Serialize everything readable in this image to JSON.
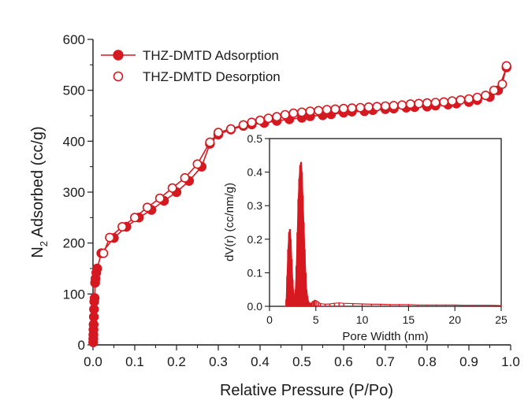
{
  "colors": {
    "series": "#d61920",
    "axis": "#1a1a1a",
    "background": "#ffffff"
  },
  "chart_data": [
    {
      "type": "line",
      "title": "",
      "xlabel": "Relative Pressure (P/Po)",
      "ylabel_main": "N",
      "ylabel_sub": "2",
      "ylabel_rest": " Adsorbed (cc/g)",
      "xlim": [
        0,
        1.0
      ],
      "ylim": [
        0,
        600
      ],
      "xticks": [
        "0.0",
        "0.1",
        "0.2",
        "0.3",
        "0.4",
        "0.5",
        "0.6",
        "0.7",
        "0.8",
        "0.9",
        "1.0"
      ],
      "yticks": [
        "0",
        "100",
        "200",
        "300",
        "400",
        "500",
        "600"
      ],
      "legend_position": "top-left",
      "series": [
        {
          "name": "THZ-DMTD Adsorption",
          "marker": "filled-circle",
          "x": [
            0.0005,
            0.0008,
            0.001,
            0.0012,
            0.0015,
            0.002,
            0.0025,
            0.003,
            0.004,
            0.005,
            0.006,
            0.008,
            0.01,
            0.02,
            0.05,
            0.08,
            0.11,
            0.14,
            0.17,
            0.2,
            0.23,
            0.26,
            0.28,
            0.3,
            0.33,
            0.36,
            0.38,
            0.41,
            0.44,
            0.47,
            0.5,
            0.52,
            0.55,
            0.57,
            0.6,
            0.62,
            0.65,
            0.67,
            0.7,
            0.72,
            0.75,
            0.77,
            0.8,
            0.82,
            0.85,
            0.87,
            0.9,
            0.92,
            0.95,
            0.97,
            0.99
          ],
          "y": [
            5,
            12,
            20,
            30,
            40,
            55,
            70,
            85,
            92,
            122,
            130,
            142,
            150,
            180,
            210,
            232,
            250,
            265,
            283,
            300,
            322,
            350,
            395,
            413,
            423,
            430,
            433,
            436,
            440,
            443,
            446,
            449,
            451,
            453,
            456,
            458,
            459,
            461,
            463,
            464,
            466,
            467,
            468,
            470,
            472,
            474,
            477,
            481,
            487,
            500,
            545
          ]
        },
        {
          "name": "THZ-DMTD Desorption",
          "marker": "open-circle",
          "x": [
            0.99,
            0.98,
            0.96,
            0.94,
            0.92,
            0.9,
            0.88,
            0.86,
            0.84,
            0.82,
            0.8,
            0.78,
            0.76,
            0.74,
            0.72,
            0.7,
            0.68,
            0.66,
            0.64,
            0.62,
            0.6,
            0.58,
            0.56,
            0.54,
            0.52,
            0.5,
            0.48,
            0.46,
            0.44,
            0.42,
            0.4,
            0.38,
            0.36,
            0.33,
            0.3,
            0.28,
            0.25,
            0.22,
            0.19,
            0.16,
            0.13,
            0.1,
            0.07,
            0.04,
            0.025
          ],
          "y": [
            548,
            512,
            500,
            490,
            486,
            483,
            481,
            479,
            477,
            476,
            475,
            474,
            473,
            471,
            470,
            469,
            468,
            467,
            466,
            465,
            464,
            463,
            462,
            460,
            459,
            457,
            455,
            452,
            448,
            445,
            441,
            437,
            432,
            424,
            417,
            398,
            355,
            328,
            308,
            288,
            270,
            250,
            232,
            211,
            180
          ]
        }
      ]
    },
    {
      "type": "bar",
      "title": "",
      "xlabel": "Pore Width (nm)",
      "ylabel": "dV(r) (cc/nm/g)",
      "xlim": [
        0,
        25
      ],
      "ylim": [
        0,
        0.5
      ],
      "xticks": [
        "0",
        "5",
        "10",
        "15",
        "20",
        "25"
      ],
      "yticks": [
        "0.0",
        "0.1",
        "0.2",
        "0.3",
        "0.4",
        "0.5"
      ],
      "x": [
        1.8,
        1.9,
        2.0,
        2.1,
        2.2,
        2.3,
        2.4,
        2.5,
        2.6,
        2.7,
        2.8,
        2.9,
        3.0,
        3.1,
        3.2,
        3.3,
        3.4,
        3.5,
        3.6,
        3.7,
        3.8,
        3.9,
        4.0,
        4.1,
        4.2,
        4.3,
        4.4,
        4.5,
        4.7,
        4.9,
        5.1,
        5.3,
        5.5,
        6.0,
        6.5,
        7.0,
        7.5,
        8.0,
        9.0,
        10.0,
        11.0,
        12.0,
        13.0,
        14.0,
        15.0,
        16.0,
        17.0,
        18.0,
        19.0,
        20.0,
        21.0,
        22.0,
        23.0,
        24.0,
        25.0
      ],
      "values": [
        0.02,
        0.09,
        0.17,
        0.22,
        0.23,
        0.2,
        0.14,
        0.08,
        0.04,
        0.02,
        0.05,
        0.12,
        0.22,
        0.32,
        0.38,
        0.42,
        0.43,
        0.4,
        0.33,
        0.25,
        0.17,
        0.1,
        0.05,
        0.03,
        0.015,
        0.01,
        0.008,
        0.01,
        0.015,
        0.018,
        0.016,
        0.012,
        0.008,
        0.006,
        0.007,
        0.009,
        0.01,
        0.009,
        0.008,
        0.007,
        0.006,
        0.006,
        0.005,
        0.005,
        0.005,
        0.004,
        0.004,
        0.004,
        0.004,
        0.004,
        0.003,
        0.003,
        0.003,
        0.003,
        0.002
      ]
    }
  ]
}
